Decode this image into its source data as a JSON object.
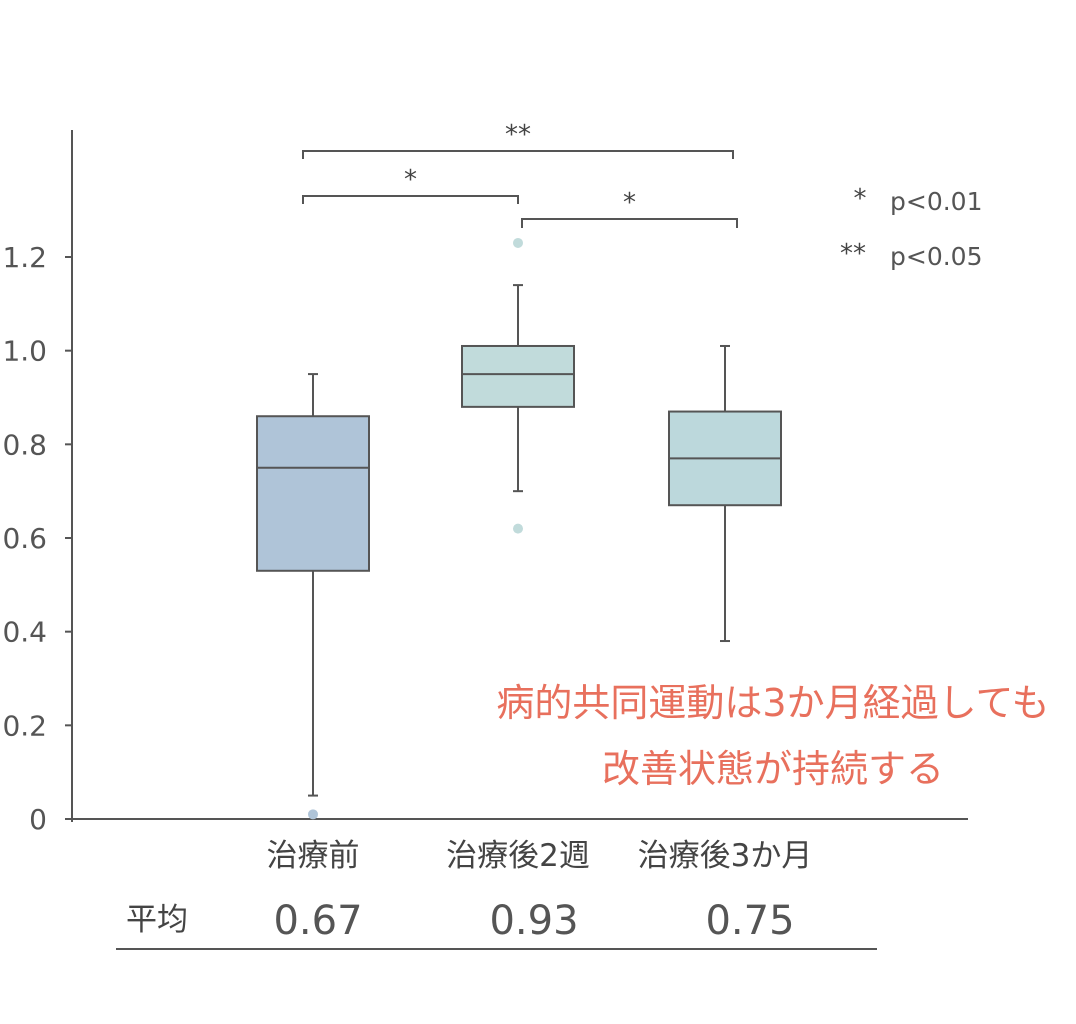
{
  "chart_data": {
    "type": "box",
    "ylim": [
      0,
      1.2
    ],
    "yticks": [
      {
        "value": 0,
        "label": "0"
      },
      {
        "value": 0.2,
        "label": "0.2"
      },
      {
        "value": 0.4,
        "label": "0.4"
      },
      {
        "value": 0.6,
        "label": "0.6"
      },
      {
        "value": 0.8,
        "label": "0.8"
      },
      {
        "value": 1.0,
        "label": "1.0"
      },
      {
        "value": 1.2,
        "label": "1.2"
      }
    ],
    "categories": [
      "治療前",
      "治療後2週",
      "治療後3か月"
    ],
    "boxes": [
      {
        "category": "治療前",
        "min": 0.05,
        "q1": 0.53,
        "median": 0.75,
        "q3": 0.86,
        "max": 0.95,
        "outliers": [
          0.01
        ],
        "color": "#afc4d8"
      },
      {
        "category": "治療後2週",
        "min": 0.7,
        "q1": 0.88,
        "median": 0.95,
        "q3": 1.01,
        "max": 1.14,
        "outliers": [
          1.23,
          0.62
        ],
        "color": "#c1dbdb"
      },
      {
        "category": "治療後3か月",
        "min": 0.38,
        "q1": 0.67,
        "median": 0.77,
        "q3": 0.87,
        "max": 1.01,
        "outliers": [],
        "color": "#bcd8dc"
      }
    ],
    "mean_row_label": "平均",
    "means": [
      "0.67",
      "0.93",
      "0.75"
    ],
    "significance": [
      {
        "from": 0,
        "to": 2,
        "label": "**"
      },
      {
        "from": 0,
        "to": 1,
        "label": "*"
      },
      {
        "from": 1,
        "to": 2,
        "label": "*"
      }
    ],
    "legend": [
      {
        "symbol": "*",
        "text": "p<0.01"
      },
      {
        "symbol": "**",
        "text": "p<0.05"
      }
    ],
    "annotation": [
      "病的共同運動は3か月経過しても",
      "改善状態が持続する"
    ],
    "colors": {
      "axis": "#555555",
      "annotation": "#e8705d",
      "box_edge": "#555555"
    }
  }
}
